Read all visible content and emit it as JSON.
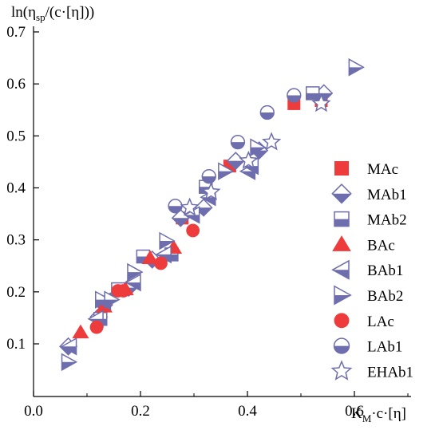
{
  "chart_data": {
    "type": "scatter",
    "ylabel_parts": {
      "main": "ln(η",
      "sub": "sp",
      "rest": "/(c·[η]))"
    },
    "xlabel_parts": {
      "main": "K",
      "sub": "M",
      "rest": "·c·[η]"
    },
    "xlim": [
      0.0,
      0.7
    ],
    "ylim": [
      0.05,
      0.7
    ],
    "x_ticks": [
      "0.0",
      "0.2",
      "0.4",
      "0.6"
    ],
    "x_tick_values": [
      0.0,
      0.2,
      0.4,
      0.6
    ],
    "y_ticks": [
      "0.1",
      "0.2",
      "0.3",
      "0.4",
      "0.5",
      "0.6",
      "0.7"
    ],
    "y_tick_values": [
      0.1,
      0.2,
      0.3,
      0.4,
      0.5,
      0.6,
      0.7
    ],
    "grid": false,
    "legend_position": "right",
    "colors": {
      "red": "#ee3b3b",
      "blue": "#6e6eae",
      "white": "#ffffff"
    },
    "series": [
      {
        "name": "MAc",
        "marker": "square-filled",
        "color": "#ee3b3b",
        "points": [
          [
            0.278,
            0.342
          ],
          [
            0.367,
            0.442
          ],
          [
            0.487,
            0.562
          ],
          [
            0.538,
            0.568
          ]
        ]
      },
      {
        "name": "MAb1",
        "marker": "diamond-half",
        "color": "#6e6eae",
        "points": [
          [
            0.065,
            0.095
          ],
          [
            0.122,
            0.152
          ],
          [
            0.132,
            0.175
          ],
          [
            0.178,
            0.208
          ],
          [
            0.222,
            0.262
          ],
          [
            0.275,
            0.342
          ],
          [
            0.318,
            0.362
          ],
          [
            0.378,
            0.452
          ],
          [
            0.422,
            0.472
          ],
          [
            0.543,
            0.582
          ]
        ]
      },
      {
        "name": "MAb2",
        "marker": "square-half",
        "color": "#6e6eae",
        "points": [
          [
            0.125,
            0.148
          ],
          [
            0.158,
            0.205
          ],
          [
            0.205,
            0.268
          ],
          [
            0.258,
            0.272
          ],
          [
            0.322,
            0.402
          ],
          [
            0.522,
            0.582
          ]
        ]
      },
      {
        "name": "BAc",
        "marker": "triangle-up",
        "color": "#ee3b3b",
        "points": [
          [
            0.088,
            0.122
          ],
          [
            0.132,
            0.172
          ],
          [
            0.172,
            0.205
          ],
          [
            0.218,
            0.265
          ],
          [
            0.262,
            0.285
          ]
        ]
      },
      {
        "name": "BAb1",
        "marker": "triangle-left",
        "color": "#6e6eae",
        "points": [
          [
            0.068,
            0.095
          ],
          [
            0.118,
            0.148
          ],
          [
            0.132,
            0.182
          ],
          [
            0.188,
            0.218
          ],
          [
            0.245,
            0.272
          ],
          [
            0.298,
            0.348
          ],
          [
            0.328,
            0.382
          ],
          [
            0.402,
            0.432
          ],
          [
            0.408,
            0.442
          ]
        ]
      },
      {
        "name": "BAb2",
        "marker": "triangle-right",
        "color": "#6e6eae",
        "points": [
          [
            0.065,
            0.065
          ],
          [
            0.128,
            0.185
          ],
          [
            0.145,
            0.185
          ],
          [
            0.188,
            0.238
          ],
          [
            0.248,
            0.298
          ],
          [
            0.358,
            0.432
          ],
          [
            0.418,
            0.478
          ],
          [
            0.602,
            0.632
          ]
        ]
      },
      {
        "name": "LAc",
        "marker": "circle-filled",
        "color": "#ee3b3b",
        "points": [
          [
            0.118,
            0.132
          ],
          [
            0.158,
            0.202
          ],
          [
            0.168,
            0.202
          ],
          [
            0.238,
            0.255
          ],
          [
            0.298,
            0.318
          ]
        ]
      },
      {
        "name": "LAb1",
        "marker": "circle-half",
        "color": "#6e6eae",
        "points": [
          [
            0.265,
            0.365
          ],
          [
            0.328,
            0.422
          ],
          [
            0.382,
            0.488
          ],
          [
            0.437,
            0.545
          ],
          [
            0.487,
            0.578
          ]
        ]
      },
      {
        "name": "EHAb1",
        "marker": "star",
        "color": "#6e6eae",
        "points": [
          [
            0.292,
            0.362
          ],
          [
            0.332,
            0.392
          ],
          [
            0.402,
            0.452
          ],
          [
            0.445,
            0.488
          ],
          [
            0.538,
            0.562
          ]
        ]
      }
    ]
  }
}
